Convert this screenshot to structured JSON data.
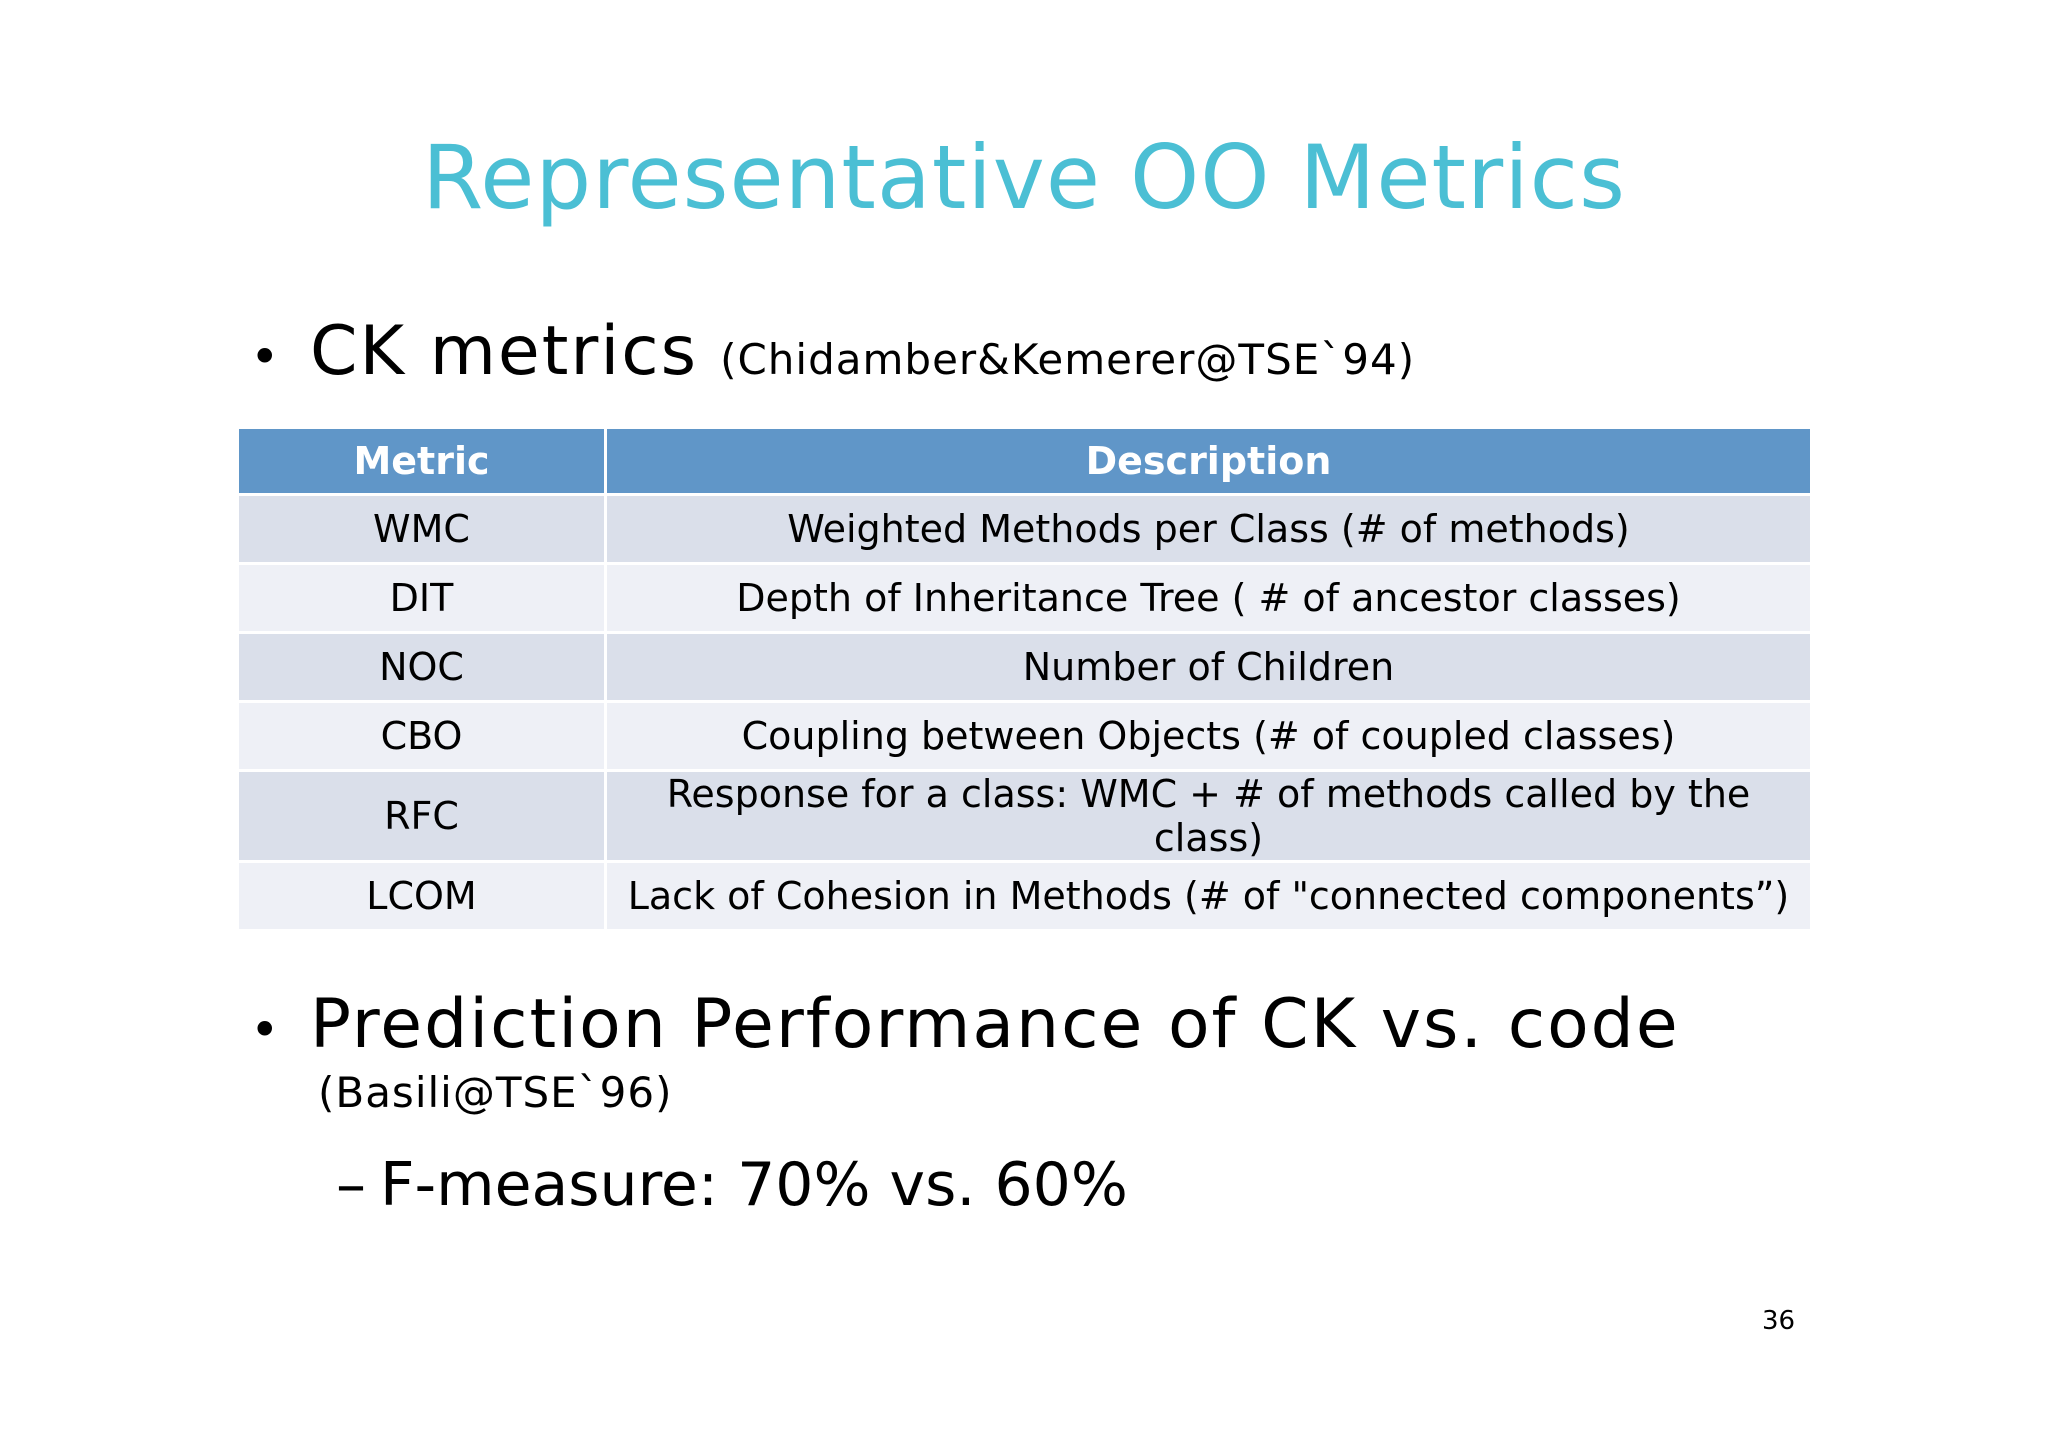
{
  "slide": {
    "title": "Representative OO Metrics",
    "page_number": "36",
    "title_color": "#4bbfd4"
  },
  "bullets": [
    {
      "marker": "•",
      "text": "CK metrics",
      "citation": "(Chidamber&Kemerer@TSE`94)"
    },
    {
      "marker": "•",
      "text": "Prediction Performance of CK vs. code",
      "citation": "(Basili@TSE`96)",
      "sub_bullets": [
        {
          "marker": "–",
          "text": "F-measure: 70% vs. 60%"
        }
      ]
    }
  ],
  "table": {
    "header_color": "#6096c8",
    "row_colors": [
      "#dadfea",
      "#eef0f6"
    ],
    "columns": [
      "Metric",
      "Description"
    ],
    "rows": [
      {
        "metric": "WMC",
        "description": "Weighted Methods per Class (# of methods)"
      },
      {
        "metric": "DIT",
        "description": "Depth of Inheritance Tree ( # of ancestor classes)"
      },
      {
        "metric": "NOC",
        "description": "Number of Children"
      },
      {
        "metric": "CBO",
        "description": "Coupling between Objects (# of coupled classes)"
      },
      {
        "metric": "RFC",
        "description": "Response for a class: WMC + # of methods called by the class)"
      },
      {
        "metric": "LCOM",
        "description": "Lack of Cohesion in Methods (# of \"connected components”)"
      }
    ]
  }
}
